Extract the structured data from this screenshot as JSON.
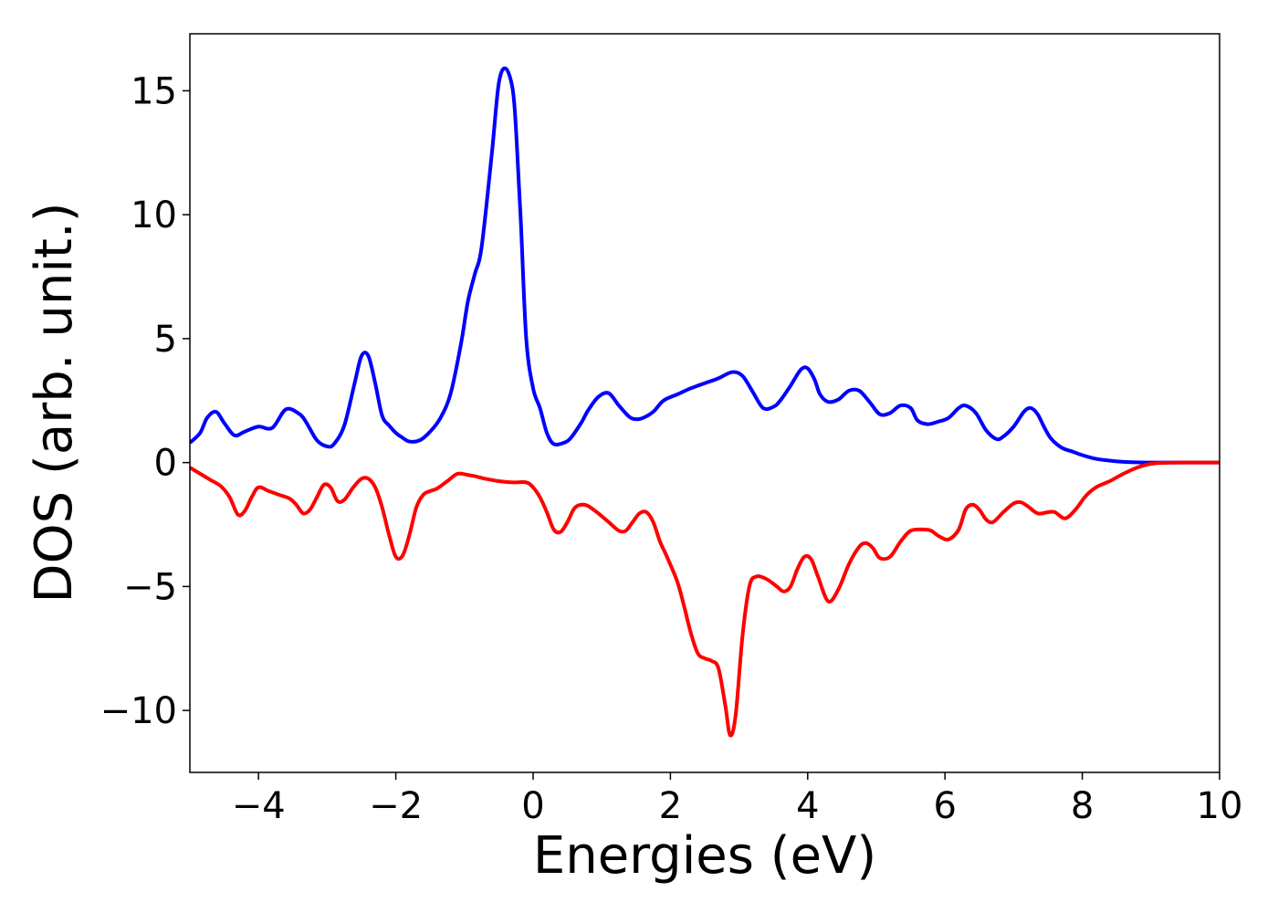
{
  "chart_data": {
    "type": "line",
    "title": "",
    "xlabel": "Energies (eV)",
    "ylabel": "DOS (arb. unit.)",
    "xlim": [
      -5,
      10
    ],
    "ylim": [
      -12.5,
      17.3
    ],
    "xticks": [
      -4,
      -2,
      0,
      2,
      4,
      6,
      8,
      10
    ],
    "xtick_labels": [
      "−4",
      "−2",
      "0",
      "2",
      "4",
      "6",
      "8",
      "10"
    ],
    "yticks": [
      -10,
      -5,
      0,
      5,
      10,
      15
    ],
    "ytick_labels": [
      "−10",
      "−5",
      "0",
      "5",
      "10",
      "15"
    ],
    "grid": false,
    "legend": "none",
    "series": [
      {
        "color": "#0000ff",
        "x": [
          -5.0,
          -4.85,
          -4.75,
          -4.62,
          -4.5,
          -4.35,
          -4.2,
          -4.0,
          -3.8,
          -3.6,
          -3.4,
          -3.3,
          -3.15,
          -3.0,
          -2.9,
          -2.75,
          -2.6,
          -2.5,
          -2.4,
          -2.3,
          -2.2,
          -2.1,
          -2.0,
          -1.9,
          -1.8,
          -1.65,
          -1.5,
          -1.35,
          -1.2,
          -1.05,
          -0.95,
          -0.85,
          -0.75,
          -0.6,
          -0.5,
          -0.4,
          -0.3,
          -0.25,
          -0.18,
          -0.1,
          0.0,
          0.1,
          0.2,
          0.3,
          0.45,
          0.55,
          0.7,
          0.8,
          0.95,
          1.1,
          1.25,
          1.4,
          1.5,
          1.6,
          1.75,
          1.9,
          2.1,
          2.3,
          2.5,
          2.7,
          2.9,
          3.05,
          3.2,
          3.35,
          3.5,
          3.6,
          3.75,
          3.9,
          4.0,
          4.1,
          4.18,
          4.3,
          4.45,
          4.6,
          4.75,
          4.9,
          5.05,
          5.2,
          5.35,
          5.5,
          5.6,
          5.75,
          5.9,
          6.05,
          6.2,
          6.3,
          6.45,
          6.6,
          6.75,
          6.85,
          7.0,
          7.15,
          7.25,
          7.35,
          7.45,
          7.55,
          7.7,
          7.85,
          8.0,
          8.2,
          8.4,
          8.6,
          8.8,
          9.0,
          9.5,
          10.0
        ],
        "y": [
          0.8,
          1.2,
          1.8,
          2.05,
          1.6,
          1.1,
          1.25,
          1.45,
          1.4,
          2.15,
          1.95,
          1.6,
          0.9,
          0.65,
          0.75,
          1.5,
          3.2,
          4.3,
          4.3,
          3.2,
          1.9,
          1.5,
          1.2,
          1.0,
          0.85,
          0.9,
          1.25,
          1.8,
          2.8,
          4.8,
          6.5,
          7.6,
          8.7,
          12.5,
          15.3,
          15.9,
          15.1,
          13.5,
          9.8,
          5.0,
          3.0,
          2.2,
          1.2,
          0.75,
          0.8,
          1.0,
          1.6,
          2.1,
          2.65,
          2.8,
          2.3,
          1.85,
          1.75,
          1.8,
          2.05,
          2.5,
          2.75,
          3.0,
          3.2,
          3.4,
          3.65,
          3.5,
          2.85,
          2.2,
          2.25,
          2.5,
          3.1,
          3.75,
          3.8,
          3.35,
          2.75,
          2.45,
          2.55,
          2.9,
          2.9,
          2.45,
          1.95,
          2.0,
          2.3,
          2.2,
          1.7,
          1.55,
          1.65,
          1.8,
          2.2,
          2.3,
          2.0,
          1.3,
          0.95,
          1.05,
          1.45,
          2.05,
          2.2,
          1.95,
          1.4,
          0.95,
          0.6,
          0.45,
          0.3,
          0.15,
          0.08,
          0.03,
          0.01,
          0.0,
          0.0,
          0.0
        ]
      },
      {
        "color": "#ff0000",
        "x": [
          -5.0,
          -4.85,
          -4.7,
          -4.55,
          -4.42,
          -4.3,
          -4.2,
          -4.1,
          -4.0,
          -3.85,
          -3.7,
          -3.55,
          -3.45,
          -3.35,
          -3.25,
          -3.15,
          -3.05,
          -2.95,
          -2.85,
          -2.75,
          -2.62,
          -2.5,
          -2.4,
          -2.3,
          -2.2,
          -2.1,
          -2.0,
          -1.9,
          -1.8,
          -1.7,
          -1.6,
          -1.5,
          -1.4,
          -1.25,
          -1.1,
          -0.95,
          -0.85,
          -0.7,
          -0.5,
          -0.3,
          -0.1,
          0.0,
          0.1,
          0.2,
          0.3,
          0.4,
          0.5,
          0.6,
          0.7,
          0.8,
          0.95,
          1.1,
          1.25,
          1.35,
          1.45,
          1.55,
          1.65,
          1.75,
          1.85,
          1.95,
          2.1,
          2.2,
          2.3,
          2.4,
          2.5,
          2.6,
          2.7,
          2.8,
          2.87,
          2.95,
          3.05,
          3.15,
          3.25,
          3.4,
          3.55,
          3.65,
          3.75,
          3.85,
          3.95,
          4.05,
          4.15,
          4.3,
          4.45,
          4.6,
          4.75,
          4.85,
          4.95,
          5.05,
          5.2,
          5.35,
          5.5,
          5.7,
          5.8,
          5.9,
          6.05,
          6.2,
          6.3,
          6.4,
          6.5,
          6.6,
          6.7,
          6.85,
          7.0,
          7.1,
          7.2,
          7.35,
          7.5,
          7.6,
          7.75,
          7.9,
          8.05,
          8.2,
          8.4,
          8.6,
          8.8,
          9.0,
          9.2,
          9.5,
          10.0
        ],
        "y": [
          -0.2,
          -0.45,
          -0.7,
          -0.95,
          -1.4,
          -2.1,
          -1.95,
          -1.4,
          -1.0,
          -1.15,
          -1.3,
          -1.45,
          -1.7,
          -2.05,
          -1.9,
          -1.4,
          -0.9,
          -1.0,
          -1.55,
          -1.5,
          -1.0,
          -0.65,
          -0.65,
          -1.0,
          -1.8,
          -2.9,
          -3.8,
          -3.75,
          -2.9,
          -1.8,
          -1.3,
          -1.15,
          -1.05,
          -0.75,
          -0.45,
          -0.5,
          -0.55,
          -0.65,
          -0.75,
          -0.8,
          -0.8,
          -1.0,
          -1.4,
          -2.0,
          -2.7,
          -2.8,
          -2.4,
          -1.85,
          -1.7,
          -1.75,
          -2.05,
          -2.4,
          -2.75,
          -2.75,
          -2.4,
          -2.05,
          -2.0,
          -2.4,
          -3.2,
          -3.8,
          -4.8,
          -5.8,
          -6.9,
          -7.7,
          -7.9,
          -8.0,
          -8.3,
          -9.8,
          -11.0,
          -10.2,
          -7.0,
          -5.0,
          -4.6,
          -4.7,
          -5.0,
          -5.2,
          -5.0,
          -4.3,
          -3.8,
          -3.9,
          -4.6,
          -5.6,
          -5.1,
          -4.1,
          -3.4,
          -3.25,
          -3.45,
          -3.85,
          -3.8,
          -3.2,
          -2.75,
          -2.7,
          -2.75,
          -2.95,
          -3.1,
          -2.7,
          -1.9,
          -1.7,
          -1.9,
          -2.3,
          -2.4,
          -2.0,
          -1.65,
          -1.6,
          -1.75,
          -2.05,
          -2.0,
          -2.0,
          -2.25,
          -1.9,
          -1.35,
          -1.0,
          -0.75,
          -0.45,
          -0.2,
          -0.05,
          -0.01,
          0.0,
          0.0
        ]
      }
    ]
  }
}
